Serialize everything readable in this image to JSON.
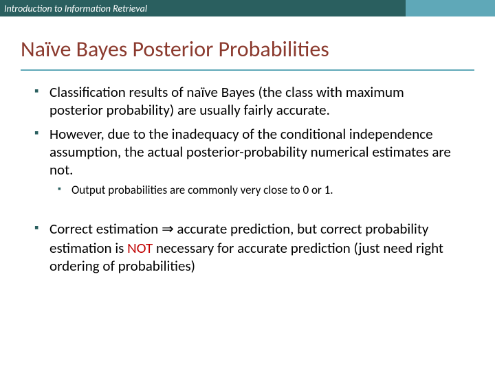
{
  "header": {
    "text": "Introduction to Information Retrieval",
    "bg_color": "#2a5f5f",
    "accent_color": "#5fa8b8",
    "text_color": "#ffffff",
    "font_size_pt": 11,
    "font_style": "italic"
  },
  "title": {
    "text": "Naïve Bayes Posterior Probabilities",
    "color": "#8b3a2e",
    "font_size_pt": 26,
    "rule_color": "#5fa8b8"
  },
  "bullets": {
    "marker_color": "#2a5f5f",
    "lvl1_font_size_pt": 17,
    "lvl2_font_size_pt": 14,
    "items": [
      {
        "text": "Classification results of naïve Bayes (the class with maximum posterior probability) are usually fairly accurate."
      },
      {
        "text": "However, due to the inadequacy of the conditional independence assumption, the actual posterior-probability numerical estimates are not.",
        "sub": [
          {
            "text": "Output probabilities are commonly very close to 0 or 1."
          }
        ]
      },
      {
        "pre": "Correct estimation ",
        "implies": "⇒",
        "mid": " accurate prediction, but correct probability estimation is ",
        "not": "NOT",
        "post": " necessary for accurate prediction (just need right ordering of probabilities)",
        "not_color": "#c00000"
      }
    ]
  },
  "background_color": "#ffffff"
}
